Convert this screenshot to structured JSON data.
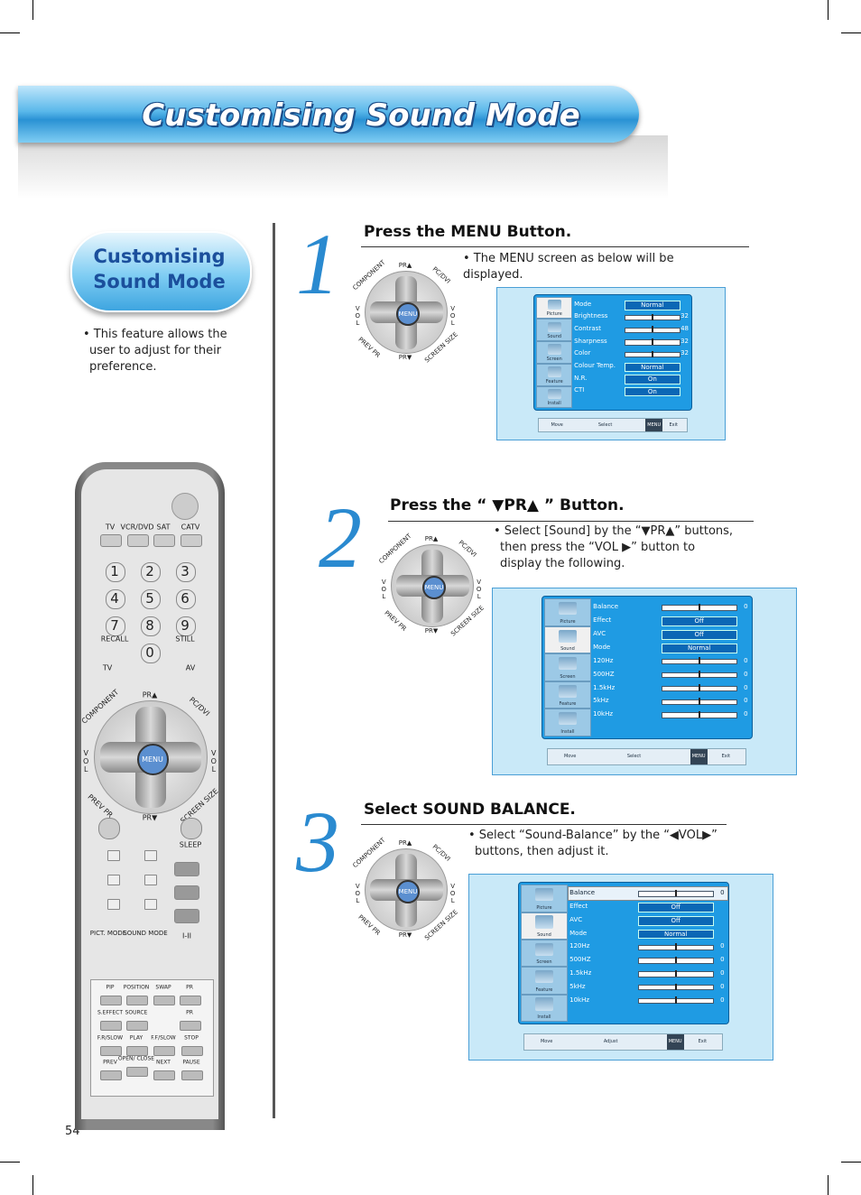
{
  "header": {
    "title": "Customising Sound Mode"
  },
  "sidebar": {
    "badge_lines": [
      "Customising",
      "Sound Mode"
    ],
    "note": "• This feature allows the user to adjust for their preference."
  },
  "dial": {
    "pr_up": "PR▲",
    "pr_down": "PR▼",
    "component": "COMPONENT",
    "pc_dvi": "PC/DVI",
    "vol": "VOL",
    "menu": "MENU",
    "prev_pr": "PREV PR",
    "screen_size": "SCREEN SIZE"
  },
  "steps": [
    {
      "number": "1",
      "heading": "Press the MENU Button.",
      "text": "• The MENU screen as below will be displayed."
    },
    {
      "number": "2",
      "heading": "Press the “ ▼PR▲ ” Button.",
      "text": "• Select [Sound] by the “▼PR▲” buttons, then press the “VOL ▶” button to display the following."
    },
    {
      "number": "3",
      "heading": "Select SOUND BALANCE.",
      "text": "• Select “Sound-Balance” by the “◀VOL▶” buttons, then adjust it."
    }
  ],
  "osd": {
    "tabs": [
      "Picture",
      "Sound",
      "Screen",
      "Feature",
      "Install"
    ]
  },
  "screens": [
    {
      "active_tab": 0,
      "highlight_row": null,
      "rows": [
        {
          "label": "Mode",
          "box": "Normal"
        },
        {
          "label": "Brightness",
          "value": 32
        },
        {
          "label": "Contrast",
          "value": 48
        },
        {
          "label": "Sharpness",
          "value": 32
        },
        {
          "label": "Color",
          "value": 32
        },
        {
          "label": "Colour Temp.",
          "box": "Normal"
        },
        {
          "label": "N.R.",
          "box": "On"
        },
        {
          "label": "CTI",
          "box": "On"
        }
      ],
      "footer": [
        "Move",
        "Select",
        "MENU",
        "Exit"
      ]
    },
    {
      "active_tab": 1,
      "highlight_row": null,
      "rows": [
        {
          "label": "Balance",
          "value": 0
        },
        {
          "label": "Effect",
          "box": "Off"
        },
        {
          "label": "AVC",
          "box": "Off"
        },
        {
          "label": "Mode",
          "box": "Normal"
        },
        {
          "label": "120Hz",
          "value": 0
        },
        {
          "label": "500HZ",
          "value": 0
        },
        {
          "label": "1.5kHz",
          "value": 0
        },
        {
          "label": "5kHz",
          "value": 0
        },
        {
          "label": "10kHz",
          "value": 0
        }
      ],
      "footer": [
        "Move",
        "Select",
        "MENU",
        "Exit"
      ]
    },
    {
      "active_tab": 1,
      "highlight_row": 0,
      "rows": [
        {
          "label": "Balance",
          "value": 0
        },
        {
          "label": "Effect",
          "box": "Off"
        },
        {
          "label": "AVC",
          "box": "Off"
        },
        {
          "label": "Mode",
          "box": "Normal"
        },
        {
          "label": "120Hz",
          "value": 0
        },
        {
          "label": "500HZ",
          "value": 0
        },
        {
          "label": "1.5kHz",
          "value": 0
        },
        {
          "label": "5kHz",
          "value": 0
        },
        {
          "label": "10kHz",
          "value": 0
        }
      ],
      "footer": [
        "Move",
        "Adjust",
        "MENU",
        "Exit"
      ]
    }
  ],
  "remote": {
    "sources": [
      "TV",
      "VCR/DVD",
      "SAT",
      "CATV"
    ],
    "digits": [
      "1",
      "2",
      "3",
      "4",
      "5",
      "6",
      "7",
      "8",
      "9",
      "0"
    ],
    "recall": "RECALL",
    "still": "STILL",
    "tv": "TV",
    "av": "AV",
    "sleep": "SLEEP",
    "pict_mode": "PICT. MODE",
    "sound_mode": "SOUND MODE",
    "i_ii": "I-II",
    "keys": [
      "PIP",
      "POSITION",
      "SWAP",
      "PR",
      "S.EFFECT",
      "SOURCE",
      "PR",
      "F.R/SLOW",
      "PLAY",
      "F.F/SLOW",
      "STOP",
      "PREV",
      "OPEN/ CLOSE",
      "NEXT",
      "PAUSE"
    ]
  },
  "page_number": "54"
}
